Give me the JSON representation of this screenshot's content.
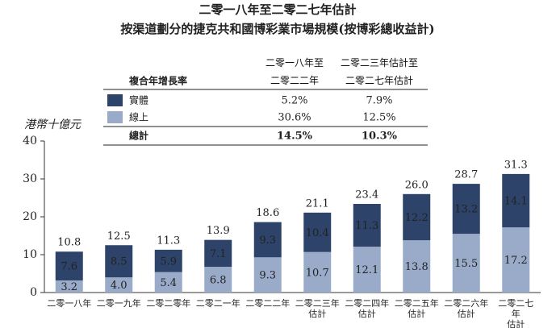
{
  "chart_data": {
    "type": "stacked_bar",
    "title": "二零一八年至二零二七年估計",
    "subtitle": "按渠道劃分的捷克共和國博彩業市場規模(按博彩總收益計)",
    "y_label": "港幣十億元",
    "categories": [
      "二零一八年",
      "二零一九年",
      "二零二零年",
      "二零二一年",
      "二零二二年",
      "二零二三年\n估計",
      "二零二四年\n估計",
      "二零二五年\n估計",
      "二零二六年\n估計",
      "二零二七年\n估計"
    ],
    "series": [
      {
        "name": "線上",
        "color": "#9aabc9",
        "values": [
          3.2,
          4.0,
          5.4,
          6.8,
          9.3,
          10.7,
          12.1,
          13.8,
          15.5,
          17.2
        ],
        "value_labels": [
          "3.2",
          "4.0",
          "5.4",
          "6.8",
          "9.3",
          "10.7",
          "12.1",
          "13.8",
          "15.5",
          "17.2"
        ]
      },
      {
        "name": "實體",
        "color": "#2d4369",
        "values": [
          7.6,
          8.5,
          5.9,
          7.1,
          9.3,
          10.4,
          11.3,
          12.2,
          13.2,
          14.1
        ],
        "value_labels": [
          "7.6",
          "8.5",
          "5.9",
          "7.1",
          "9.3",
          "10.4",
          "11.3",
          "12.2",
          "13.2",
          "14.1"
        ]
      }
    ],
    "totals": [
      10.8,
      12.5,
      11.3,
      13.9,
      18.6,
      21.1,
      23.4,
      26.0,
      28.7,
      31.3
    ],
    "total_labels": [
      "10.8",
      "12.5",
      "11.3",
      "13.9",
      "18.6",
      "21.1",
      "23.4",
      "26.0",
      "28.7",
      "31.3"
    ],
    "ylim": [
      0,
      40
    ],
    "yticks": [
      0,
      10,
      20,
      30,
      40
    ],
    "cagr": {
      "title": "複合年增長率",
      "columns": [
        "二零一八年至\n二零二二年",
        "二零二三年估計至\n二零二七年估計"
      ],
      "values": [
        [
          "5.2%",
          "7.9%"
        ],
        [
          "30.6%",
          "12.5%"
        ],
        [
          "14.5%",
          "10.3%"
        ]
      ],
      "total_label": "總計"
    }
  }
}
